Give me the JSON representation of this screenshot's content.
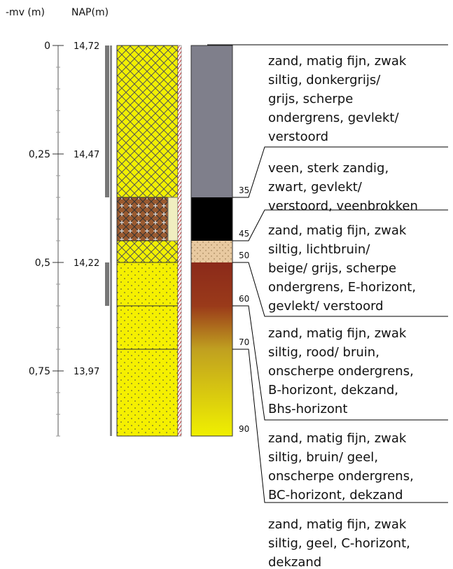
{
  "header": {
    "depth_label": "-mv (m)",
    "nap_label": "NAP(m)"
  },
  "depth_ticks": [
    "0",
    "0,25",
    "0,5",
    "0,75"
  ],
  "nap_ticks": [
    "14,72",
    "14,47",
    "14,22",
    "13,97"
  ],
  "layer_depths": [
    "35",
    "45",
    "50",
    "60",
    "70",
    "90"
  ],
  "descriptions": [
    [
      "zand, matig fijn, zwak",
      "siltig, donkergrijs/",
      "grijs, scherpe",
      "ondergrens, gevlekt/",
      "verstoord"
    ],
    [
      "veen, sterk zandig,",
      "zwart, gevlekt/",
      "verstoord, veenbrokken"
    ],
    [
      "zand, matig fijn, zwak",
      "siltig, lichtbruin/",
      "beige/ grijs, scherpe",
      "ondergrens, E-horizont,",
      "gevlekt/ verstoord"
    ],
    [
      "zand, matig fijn, zwak",
      "siltig, rood/ bruin,",
      "onscherpe ondergrens,",
      "B-horizont, dekzand,",
      "Bhs-horizont"
    ],
    [
      "zand, matig fijn, zwak",
      "siltig, bruin/ geel,",
      "onscherpe ondergrens,",
      "BC-horizont, dekzand"
    ],
    [
      "zand, matig fijn, zwak",
      "siltig, geel, C-horizont,",
      "dekzand"
    ]
  ]
}
